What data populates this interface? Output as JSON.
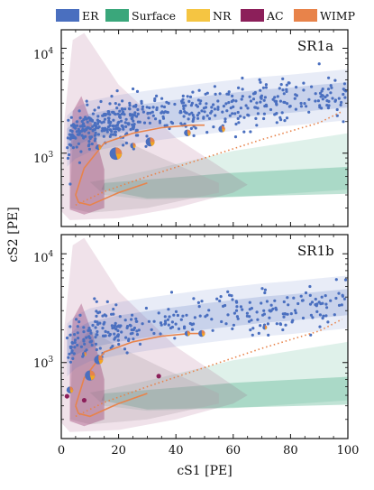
{
  "chart_data": [
    {
      "type": "scatter",
      "panel_label": "SR1a",
      "xlabel": "cS1 [PE]",
      "ylabel": "cS2 [PE]",
      "xlim": [
        0,
        100
      ],
      "ylim": [
        200,
        15000
      ],
      "y_scale": "log",
      "x_ticks": [
        0,
        20,
        40,
        60,
        80,
        100
      ],
      "x_tick_labels": [
        "0",
        "20",
        "40",
        "60",
        "80",
        "100"
      ],
      "y_tick_labels": [
        "10^3",
        "10^4"
      ],
      "legend": [
        "ER",
        "Surface",
        "NR",
        "AC",
        "WIMP"
      ],
      "legend_position": "top",
      "colors": {
        "ER": "#4a6fbf",
        "Surface": "#3aa77b",
        "NR": "#f5c542",
        "AC": "#8c1f5a",
        "WIMP": "#e8834a"
      },
      "er_band_median": [
        [
          2,
          1300
        ],
        [
          5,
          1550
        ],
        [
          10,
          1800
        ],
        [
          20,
          2050
        ],
        [
          30,
          2250
        ],
        [
          40,
          2450
        ],
        [
          50,
          2650
        ],
        [
          60,
          2850
        ],
        [
          70,
          3050
        ],
        [
          80,
          3200
        ],
        [
          90,
          3400
        ],
        [
          100,
          3600
        ]
      ],
      "wimp_median": [
        [
          5,
          400
        ],
        [
          8,
          720
        ],
        [
          15,
          1250
        ],
        [
          25,
          1550
        ],
        [
          35,
          1750
        ],
        [
          45,
          1850
        ],
        [
          50,
          1850
        ]
      ],
      "wimp_lower": [
        [
          5,
          320
        ],
        [
          15,
          430
        ],
        [
          30,
          600
        ],
        [
          50,
          900
        ],
        [
          70,
          1350
        ],
        [
          90,
          1950
        ],
        [
          98,
          2500
        ]
      ],
      "large_events": [
        {
          "cS1": 19,
          "cS2": 990,
          "size": 11
        },
        {
          "cS1": 31,
          "cS2": 1280,
          "size": 8
        },
        {
          "cS1": 44,
          "cS2": 1560,
          "size": 6
        },
        {
          "cS1": 56,
          "cS2": 1700,
          "size": 6
        },
        {
          "cS1": 25,
          "cS2": 1180,
          "size": 5
        },
        {
          "cS1": 13,
          "cS2": 1140,
          "size": 5
        }
      ],
      "outlier_events": [
        {
          "cS1": 90,
          "cS2": 7100
        }
      ]
    },
    {
      "type": "scatter",
      "panel_label": "SR1b",
      "xlabel": "cS1 [PE]",
      "ylabel": "cS2 [PE]",
      "xlim": [
        0,
        100
      ],
      "ylim": [
        200,
        15000
      ],
      "y_scale": "log",
      "x_ticks": [
        0,
        20,
        40,
        60,
        80,
        100
      ],
      "x_tick_labels": [
        "0",
        "20",
        "40",
        "60",
        "80",
        "100"
      ],
      "y_tick_labels": [
        "10^3",
        "10^4"
      ],
      "er_band_median": [
        [
          2,
          1300
        ],
        [
          5,
          1550
        ],
        [
          10,
          1800
        ],
        [
          20,
          2050
        ],
        [
          30,
          2250
        ],
        [
          40,
          2450
        ],
        [
          50,
          2650
        ],
        [
          60,
          2850
        ],
        [
          70,
          3050
        ],
        [
          80,
          3200
        ],
        [
          90,
          3400
        ],
        [
          100,
          3600
        ]
      ],
      "wimp_median": [
        [
          5,
          400
        ],
        [
          8,
          720
        ],
        [
          15,
          1250
        ],
        [
          25,
          1550
        ],
        [
          35,
          1750
        ],
        [
          45,
          1850
        ],
        [
          50,
          1850
        ]
      ],
      "wimp_lower": [
        [
          5,
          320
        ],
        [
          15,
          430
        ],
        [
          30,
          600
        ],
        [
          50,
          900
        ],
        [
          70,
          1350
        ],
        [
          90,
          1950
        ],
        [
          98,
          2500
        ]
      ],
      "large_events": [
        {
          "cS1": 10,
          "cS2": 760,
          "size": 9
        },
        {
          "cS1": 13,
          "cS2": 1060,
          "size": 8
        },
        {
          "cS1": 3,
          "cS2": 560,
          "size": 6
        },
        {
          "cS1": 49,
          "cS2": 1850,
          "size": 6
        },
        {
          "cS1": 44,
          "cS2": 1850,
          "size": 5
        },
        {
          "cS1": 71,
          "cS2": 2100,
          "size": 4
        },
        {
          "cS1": 8,
          "cS2": 1200,
          "size": 4
        }
      ],
      "ac_events": [
        {
          "cS1": 34,
          "cS2": 750
        },
        {
          "cS1": 8,
          "cS2": 450
        },
        {
          "cS1": 2,
          "cS2": 490
        }
      ],
      "outlier_events": [
        {
          "cS1": 96,
          "cS2": 5800
        }
      ]
    }
  ],
  "texts": {
    "legend": [
      "ER",
      "Surface",
      "NR",
      "AC",
      "WIMP"
    ],
    "xlabel": "cS1 [PE]",
    "ylabel": "cS2 [PE]",
    "panel_a": "SR1a",
    "panel_b": "SR1b",
    "x_tick_labels": [
      "0",
      "20",
      "40",
      "60",
      "80",
      "100"
    ],
    "y_base": "10",
    "y_exp_3": "3",
    "y_exp_4": "4"
  }
}
